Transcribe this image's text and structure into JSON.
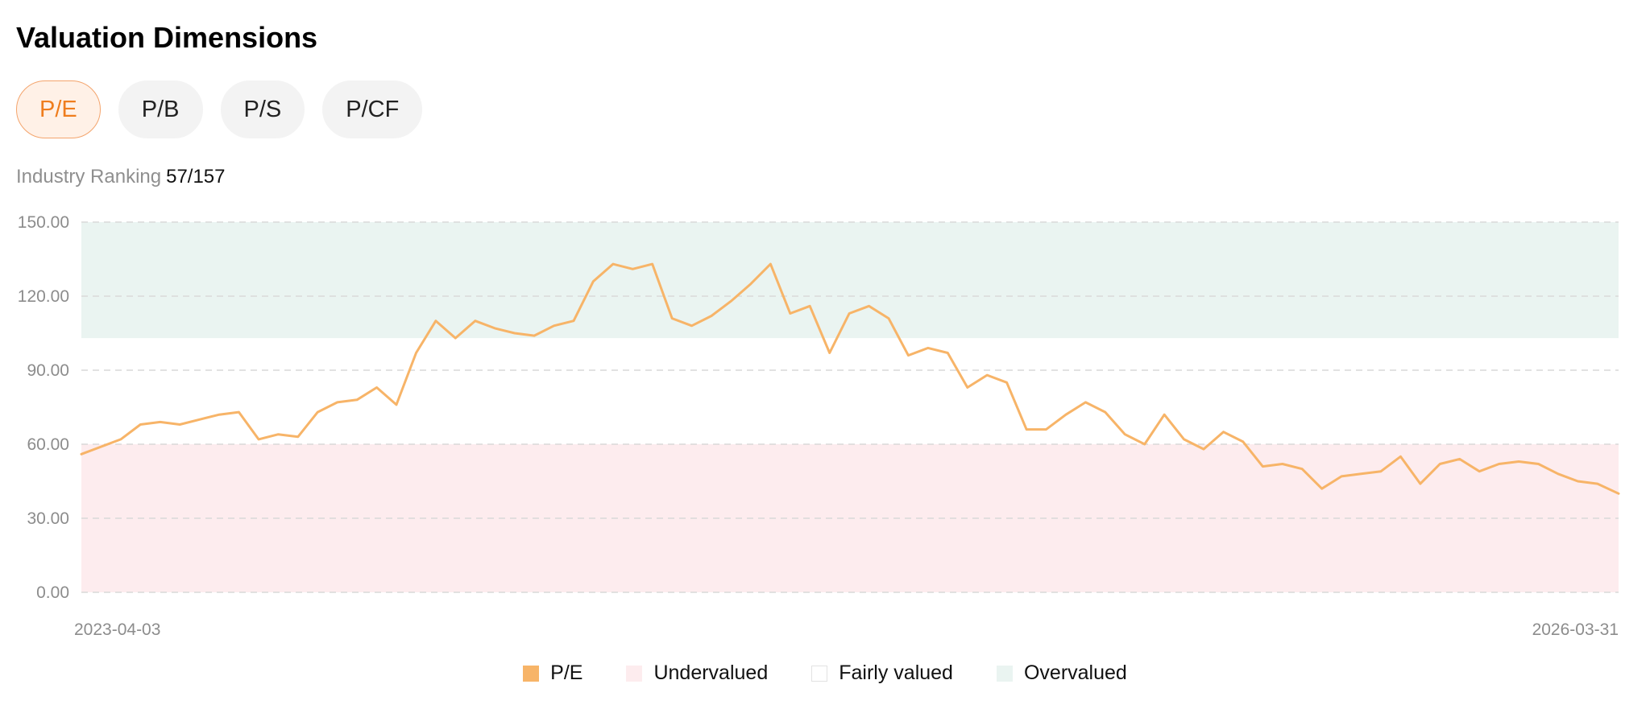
{
  "header": {
    "title": "Valuation Dimensions"
  },
  "tabs": [
    {
      "label": "P/E",
      "active": true
    },
    {
      "label": "P/B",
      "active": false
    },
    {
      "label": "P/S",
      "active": false
    },
    {
      "label": "P/CF",
      "active": false
    }
  ],
  "ranking": {
    "label": "Industry Ranking",
    "value": "57/157"
  },
  "colors": {
    "line": "#f7b468",
    "undervalued": "#fdecee",
    "fairly_valued": "#ffffff",
    "overvalued": "#eaf4f1",
    "accent": "#ef7d1d",
    "grid": "#d9d9d9"
  },
  "chart_data": {
    "type": "line",
    "title": "",
    "xlabel": "",
    "ylabel": "",
    "ylim": [
      0,
      150
    ],
    "y_ticks": [
      "150.00",
      "120.00",
      "90.00",
      "60.00",
      "30.00",
      "0.00"
    ],
    "x_labels": [
      "2023-04-03",
      "2026-03-31"
    ],
    "grid": "horizontal dashed",
    "legend_position": "bottom-center",
    "bands": [
      {
        "name": "Undervalued",
        "from": 0,
        "to": 60
      },
      {
        "name": "Fairly valued",
        "from": 60,
        "to": 103
      },
      {
        "name": "Overvalued",
        "from": 103,
        "to": 150
      }
    ],
    "series": [
      {
        "name": "P/E",
        "x": [
          "2023-04-03",
          "2023-04-17",
          "2023-05-01",
          "2023-05-15",
          "2023-05-29",
          "2023-06-12",
          "2023-06-26",
          "2023-07-10",
          "2023-07-24",
          "2023-08-07",
          "2023-08-21",
          "2023-09-04",
          "2023-09-18",
          "2023-10-02",
          "2023-10-16",
          "2023-10-30",
          "2023-11-13",
          "2023-11-27",
          "2023-12-11",
          "2023-12-25",
          "2024-01-08",
          "2024-01-22",
          "2024-02-05",
          "2024-02-19",
          "2024-03-04",
          "2024-03-18",
          "2024-04-01",
          "2024-04-15",
          "2024-04-29",
          "2024-05-13",
          "2024-05-27",
          "2024-06-10",
          "2024-06-24",
          "2024-07-08",
          "2024-07-22",
          "2024-08-05",
          "2024-08-19",
          "2024-09-02",
          "2024-09-16",
          "2024-09-30",
          "2024-10-14",
          "2024-10-28",
          "2024-11-11",
          "2024-11-25",
          "2024-12-09",
          "2024-12-23",
          "2025-01-06",
          "2025-01-20",
          "2025-02-03",
          "2025-02-17",
          "2025-03-03",
          "2025-03-17",
          "2025-03-31",
          "2025-04-14",
          "2025-04-28",
          "2025-05-12",
          "2025-05-26",
          "2025-06-09",
          "2025-06-23",
          "2025-07-07",
          "2025-07-21",
          "2025-08-04",
          "2025-08-18",
          "2025-09-01",
          "2025-09-15",
          "2025-09-29",
          "2025-10-13",
          "2025-10-27",
          "2025-11-10",
          "2025-11-24",
          "2025-12-08",
          "2025-12-22",
          "2026-01-05",
          "2026-01-19",
          "2026-02-02",
          "2026-02-16",
          "2026-03-02",
          "2026-03-16",
          "2026-03-31"
        ],
        "values": [
          56,
          59,
          62,
          68,
          69,
          68,
          70,
          72,
          73,
          62,
          64,
          63,
          73,
          77,
          78,
          83,
          76,
          97,
          110,
          103,
          110,
          107,
          105,
          104,
          108,
          110,
          126,
          133,
          131,
          133,
          111,
          108,
          112,
          118,
          125,
          133,
          113,
          116,
          97,
          113,
          116,
          111,
          96,
          99,
          97,
          83,
          88,
          85,
          66,
          66,
          72,
          77,
          73,
          64,
          60,
          72,
          62,
          58,
          65,
          61,
          51,
          52,
          50,
          42,
          47,
          48,
          49,
          55,
          44,
          52,
          54,
          49,
          52,
          53,
          52,
          48,
          45,
          44,
          40
        ]
      }
    ]
  },
  "legend": [
    {
      "label": "P/E",
      "color": "#f7b468",
      "border": "#f7b468"
    },
    {
      "label": "Undervalued",
      "color": "#fdecee",
      "border": "#fdecee"
    },
    {
      "label": "Fairly valued",
      "color": "#ffffff",
      "border": "#e2e2e2"
    },
    {
      "label": "Overvalued",
      "color": "#eaf4f1",
      "border": "#eaf4f1"
    }
  ]
}
